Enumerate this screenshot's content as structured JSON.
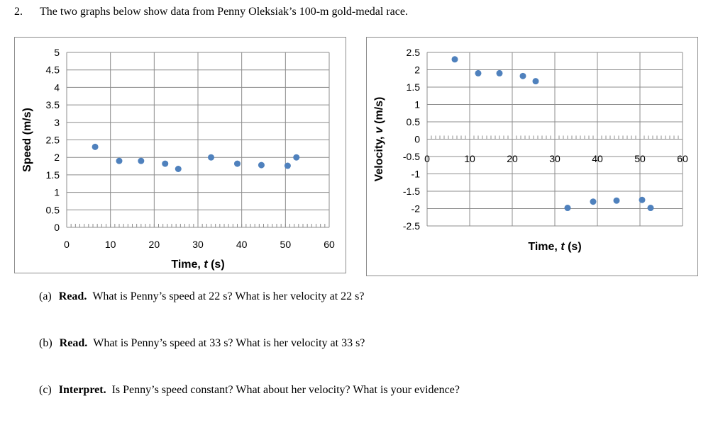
{
  "question": {
    "number": "2.",
    "intro": "The two graphs below show data from Penny Oleksiak’s  100-m  gold-medal race."
  },
  "chart_data": [
    {
      "type": "scatter",
      "title": "",
      "xlabel": "Time, t (s)",
      "xlabel_prefix": "Time, ",
      "xlabel_var": "t",
      "xlabel_unit": " (s)",
      "ylabel": "Speed (m/s)",
      "xlim": [
        0,
        60
      ],
      "ylim": [
        0,
        5
      ],
      "xticks": [
        0,
        10,
        20,
        30,
        40,
        50,
        60
      ],
      "yticks": [
        0,
        0.5,
        1,
        1.5,
        2,
        2.5,
        3,
        3.5,
        4,
        4.5,
        5
      ],
      "grid": true,
      "marker_color": "#4f81bd",
      "x": [
        6.5,
        12,
        17,
        22.5,
        25.5,
        33,
        39,
        44.5,
        50.5,
        52.5
      ],
      "y": [
        2.3,
        1.9,
        1.9,
        1.82,
        1.67,
        2.0,
        1.82,
        1.78,
        1.76,
        2.0
      ]
    },
    {
      "type": "scatter",
      "title": "",
      "xlabel": "Time, t (s)",
      "xlabel_prefix": "Time, ",
      "xlabel_var": "t",
      "xlabel_unit": " (s)",
      "ylabel": "Velocity, v (m/s)",
      "ylabel_prefix": "Velocity, ",
      "ylabel_var": "v",
      "ylabel_unit": " (m/s)",
      "xlim": [
        0,
        60
      ],
      "ylim": [
        -2.5,
        2.5
      ],
      "xticks": [
        0,
        10,
        20,
        30,
        40,
        50,
        60
      ],
      "yticks": [
        -2.5,
        -2,
        -1.5,
        -1,
        -0.5,
        0,
        0.5,
        1,
        1.5,
        2,
        2.5
      ],
      "grid": true,
      "marker_color": "#4f81bd",
      "x": [
        6.5,
        12,
        17,
        22.5,
        25.5,
        33,
        39,
        44.5,
        50.5,
        52.5
      ],
      "y": [
        2.3,
        1.9,
        1.9,
        1.82,
        1.67,
        -1.98,
        -1.8,
        -1.77,
        -1.75,
        -1.98
      ]
    }
  ],
  "prompts": [
    {
      "tag": "(a)",
      "bold": "Read.",
      "text": "What is Penny’s speed at 22 s? What is her velocity at 22  s?"
    },
    {
      "tag": "(b)",
      "bold": "Read.",
      "text": "What is Penny’s speed at 33 s? What is her velocity at 33  s?"
    },
    {
      "tag": "(c)",
      "bold": "Interpret.",
      "text": "Is Penny’s speed constant? What about her velocity? What is your evidence?"
    }
  ]
}
